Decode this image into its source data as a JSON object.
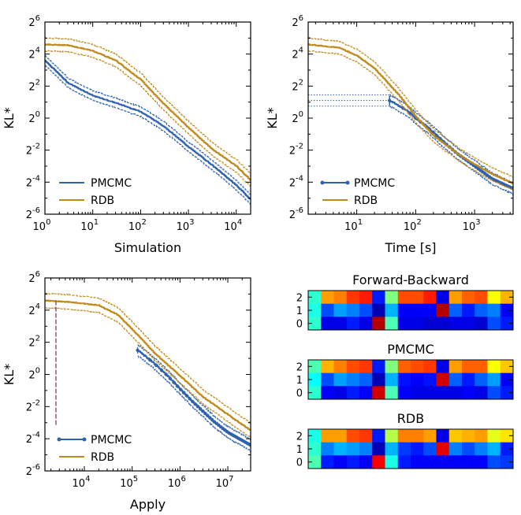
{
  "colors": {
    "pmcmc": "#2f62ad",
    "rdb": "#c08a1b",
    "axis": "#000000",
    "vline": "#8b2a4a"
  },
  "chart_data": [
    {
      "type": "line",
      "panel": "simulation",
      "xlabel": "Simulation",
      "ylabel": "KL*",
      "xscale": "log",
      "yscale": "log2",
      "xlim": [
        1,
        20000
      ],
      "ylim_log2": [
        -6,
        6
      ],
      "xticks": [
        {
          "base": "10",
          "exp": "0"
        },
        {
          "base": "10",
          "exp": "1"
        },
        {
          "base": "10",
          "exp": "2"
        },
        {
          "base": "10",
          "exp": "3"
        },
        {
          "base": "10",
          "exp": "4"
        }
      ],
      "yticks": [
        {
          "base": "2",
          "exp": "6"
        },
        {
          "base": "2",
          "exp": "4"
        },
        {
          "base": "2",
          "exp": "2"
        },
        {
          "base": "2",
          "exp": "0"
        },
        {
          "base": "2",
          "exp": "-2"
        },
        {
          "base": "2",
          "exp": "-4"
        },
        {
          "base": "2",
          "exp": "-6"
        }
      ],
      "legend": {
        "position": "bottom-left",
        "entries": [
          "PMCMC",
          "RDB"
        ]
      },
      "series": [
        {
          "name": "PMCMC",
          "x": [
            1,
            3,
            10,
            30,
            100,
            300,
            1000,
            3000,
            10000,
            20000
          ],
          "log2y": [
            3.6,
            2.2,
            1.4,
            0.95,
            0.4,
            -0.5,
            -1.8,
            -2.9,
            -4.2,
            -5.1
          ],
          "band_log2": 0.3
        },
        {
          "name": "RDB",
          "x": [
            1,
            3,
            10,
            30,
            100,
            300,
            1000,
            3000,
            10000,
            20000
          ],
          "log2y": [
            4.6,
            4.55,
            4.2,
            3.6,
            2.4,
            0.9,
            -0.6,
            -1.9,
            -3.0,
            -3.9
          ],
          "band_log2": 0.4
        }
      ]
    },
    {
      "type": "line",
      "panel": "time",
      "xlabel": "Time [s]",
      "ylabel": "KL*",
      "xscale": "log",
      "yscale": "log2",
      "xlim": [
        1.5,
        4500
      ],
      "ylim_log2": [
        -6,
        6
      ],
      "xticks": [
        {
          "base": "10",
          "exp": "1"
        },
        {
          "base": "10",
          "exp": "2"
        },
        {
          "base": "10",
          "exp": "3"
        }
      ],
      "yticks": [
        {
          "base": "2",
          "exp": "6"
        },
        {
          "base": "2",
          "exp": "4"
        },
        {
          "base": "2",
          "exp": "2"
        },
        {
          "base": "2",
          "exp": "0"
        },
        {
          "base": "2",
          "exp": "-2"
        },
        {
          "base": "2",
          "exp": "-4"
        },
        {
          "base": "2",
          "exp": "-6"
        }
      ],
      "legend": {
        "position": "bottom-left",
        "entries": [
          "PMCMC",
          "RDB"
        ]
      },
      "series": [
        {
          "name": "PMCMC",
          "start_x": 36,
          "start_log2y": 1.1,
          "x": [
            36,
            70,
            100,
            150,
            200,
            300,
            500,
            1000,
            2000,
            4500
          ],
          "log2y": [
            1.1,
            0.5,
            0.0,
            -0.5,
            -0.9,
            -1.5,
            -2.2,
            -3.0,
            -3.8,
            -4.4
          ],
          "band_log2": 0.35,
          "markers": true
        },
        {
          "name": "RDB",
          "x": [
            1.5,
            5,
            10,
            20,
            50,
            100,
            200,
            500,
            1000,
            2000,
            4500
          ],
          "log2y": [
            4.6,
            4.4,
            3.9,
            3.1,
            1.5,
            0.1,
            -1.1,
            -2.2,
            -2.9,
            -3.5,
            -4.1
          ],
          "band_log2": 0.4
        }
      ]
    },
    {
      "type": "line",
      "panel": "apply",
      "xlabel": "Apply",
      "ylabel": "KL*",
      "xscale": "log",
      "yscale": "log2",
      "xlim": [
        1500,
        30000000
      ],
      "ylim_log2": [
        -6,
        6
      ],
      "xticks": [
        {
          "base": "10",
          "exp": "4"
        },
        {
          "base": "10",
          "exp": "5"
        },
        {
          "base": "10",
          "exp": "6"
        },
        {
          "base": "10",
          "exp": "7"
        }
      ],
      "yticks": [
        {
          "base": "2",
          "exp": "6"
        },
        {
          "base": "2",
          "exp": "4"
        },
        {
          "base": "2",
          "exp": "2"
        },
        {
          "base": "2",
          "exp": "0"
        },
        {
          "base": "2",
          "exp": "-2"
        },
        {
          "base": "2",
          "exp": "-4"
        },
        {
          "base": "2",
          "exp": "-6"
        }
      ],
      "legend": {
        "position": "bottom-left",
        "entries": [
          "PMCMC",
          "RDB"
        ]
      },
      "series": [
        {
          "name": "PMCMC",
          "start_x": 130000,
          "start_log2y": 1.5,
          "x": [
            130000,
            260000,
            400000,
            600000,
            1000000,
            2000000,
            5000000,
            10000000,
            30000000
          ],
          "log2y": [
            1.5,
            0.8,
            0.3,
            -0.2,
            -0.9,
            -1.8,
            -2.9,
            -3.6,
            -4.4
          ],
          "band_log2": 0.35,
          "markers": true
        },
        {
          "name": "RDB",
          "x": [
            1500,
            5000,
            20000,
            50000,
            100000,
            300000,
            1000000,
            3000000,
            10000000,
            30000000
          ],
          "log2y": [
            4.6,
            4.5,
            4.3,
            3.7,
            2.8,
            1.3,
            -0.1,
            -1.4,
            -2.5,
            -3.5
          ],
          "band_log2": 0.45
        }
      ]
    },
    {
      "type": "heatmap",
      "panel": "forward-backward",
      "title": "Forward-Backward",
      "yticks": [
        "2",
        "1",
        "0"
      ],
      "rows": [
        [
          0.42,
          0.72,
          0.75,
          0.82,
          0.85,
          0.15,
          0.5,
          0.8,
          0.8,
          0.85,
          0.1,
          0.72,
          0.78,
          0.8,
          0.62,
          0.7
        ],
        [
          0.4,
          0.2,
          0.28,
          0.25,
          0.2,
          0.05,
          0.3,
          0.12,
          0.12,
          0.12,
          0.95,
          0.22,
          0.15,
          0.22,
          0.25,
          0.12
        ],
        [
          0.42,
          0.1,
          0.1,
          0.15,
          0.1,
          0.95,
          0.45,
          0.1,
          0.1,
          0.08,
          0.08,
          0.1,
          0.1,
          0.08,
          0.2,
          0.15
        ]
      ]
    },
    {
      "type": "heatmap",
      "panel": "pmcmc",
      "title": "PMCMC",
      "yticks": [
        "2",
        "1",
        "0"
      ],
      "rows": [
        [
          0.45,
          0.7,
          0.75,
          0.8,
          0.82,
          0.15,
          0.5,
          0.78,
          0.8,
          0.82,
          0.1,
          0.72,
          0.78,
          0.78,
          0.62,
          0.68
        ],
        [
          0.38,
          0.2,
          0.28,
          0.25,
          0.22,
          0.05,
          0.3,
          0.14,
          0.12,
          0.14,
          0.92,
          0.22,
          0.15,
          0.22,
          0.28,
          0.12
        ],
        [
          0.42,
          0.12,
          0.1,
          0.15,
          0.12,
          0.92,
          0.45,
          0.12,
          0.1,
          0.1,
          0.1,
          0.1,
          0.12,
          0.1,
          0.2,
          0.15
        ]
      ]
    },
    {
      "type": "heatmap",
      "panel": "rdb",
      "title": "RDB",
      "yticks": [
        "2",
        "1",
        "0"
      ],
      "rows": [
        [
          0.4,
          0.72,
          0.72,
          0.8,
          0.82,
          0.15,
          0.55,
          0.75,
          0.75,
          0.72,
          0.1,
          0.68,
          0.7,
          0.72,
          0.6,
          0.65
        ],
        [
          0.42,
          0.25,
          0.3,
          0.28,
          0.25,
          0.05,
          0.3,
          0.18,
          0.15,
          0.2,
          0.9,
          0.25,
          0.2,
          0.25,
          0.3,
          0.15
        ],
        [
          0.45,
          0.15,
          0.12,
          0.15,
          0.12,
          0.88,
          0.4,
          0.15,
          0.12,
          0.12,
          0.12,
          0.12,
          0.12,
          0.12,
          0.2,
          0.18
        ]
      ]
    }
  ]
}
